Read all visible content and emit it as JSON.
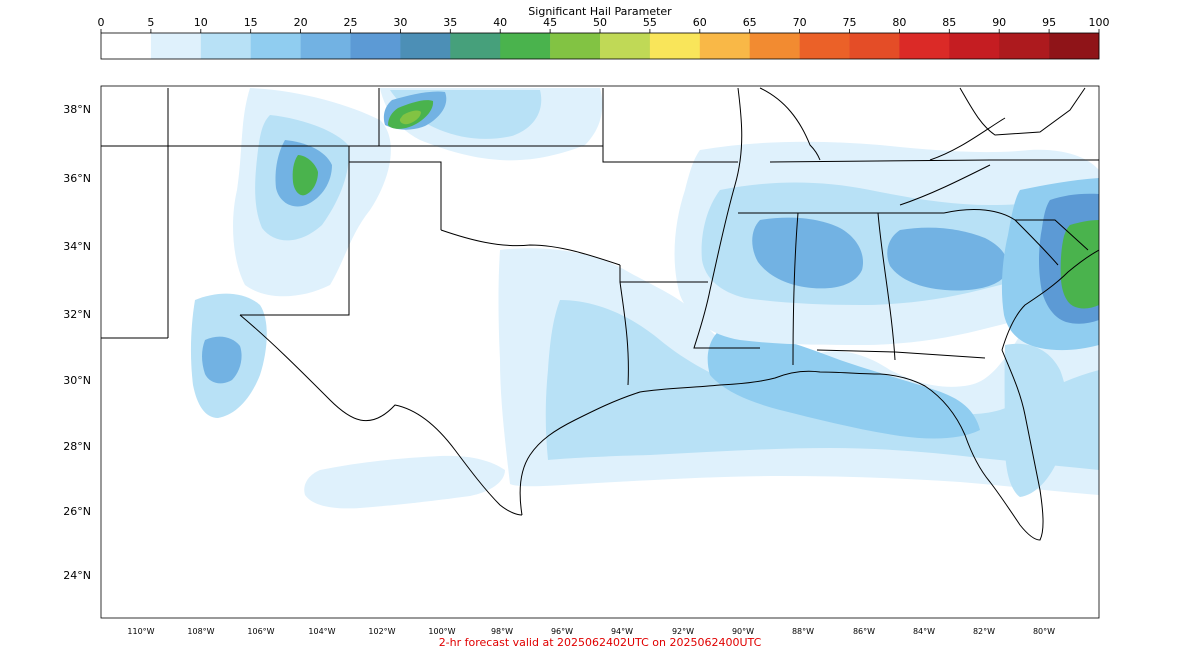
{
  "colorbar": {
    "title": "Significant Hail Parameter",
    "ticks": [
      "0",
      "5",
      "10",
      "15",
      "20",
      "25",
      "30",
      "35",
      "40",
      "45",
      "50",
      "55",
      "60",
      "65",
      "70",
      "75",
      "80",
      "85",
      "90",
      "95",
      "100"
    ],
    "colors": [
      "#ffffff",
      "#dff1fc",
      "#b8e1f6",
      "#90cdf0",
      "#72b2e3",
      "#5c9ad5",
      "#4c8fb6",
      "#46a07b",
      "#4ab34d",
      "#82c343",
      "#c0d956",
      "#f9e55a",
      "#f9b847",
      "#f28b31",
      "#eb6128",
      "#e44d27",
      "#db2a27",
      "#c51d22",
      "#ad1a1e",
      "#8f1418"
    ]
  },
  "map": {
    "lat_ticks": [
      "38°N",
      "36°N",
      "34°N",
      "32°N",
      "30°N",
      "28°N",
      "26°N",
      "24°N"
    ],
    "lon_ticks": [
      "110°W",
      "108°W",
      "106°W",
      "104°W",
      "102°W",
      "100°W",
      "98°W",
      "96°W",
      "94°W",
      "92°W",
      "90°W",
      "88°W",
      "86°W",
      "84°W",
      "82°W",
      "80°W"
    ]
  },
  "footer_text": "2-hr forecast valid at 2025062402UTC on 2025062400UTC"
}
